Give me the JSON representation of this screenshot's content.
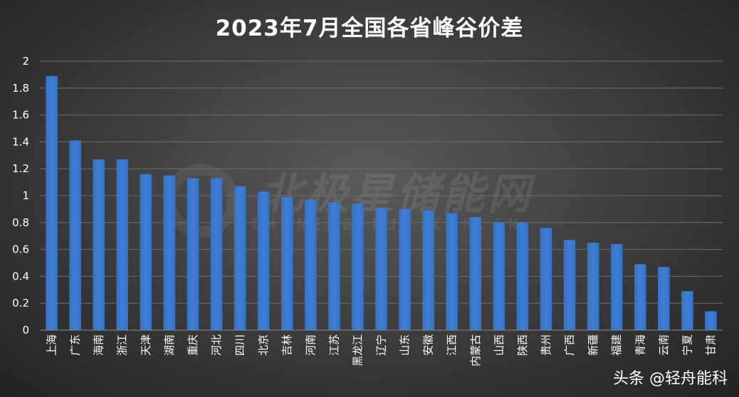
{
  "chart_data": {
    "type": "bar",
    "title": "2023年7月全国各省峰谷价差",
    "xlabel": "",
    "ylabel": "",
    "ylim": [
      0,
      2
    ],
    "yticks": [
      0,
      0.2,
      0.4,
      0.6,
      0.8,
      1,
      1.2,
      1.4,
      1.6,
      1.8,
      2
    ],
    "yticks_labels": [
      "0",
      "0.2",
      "0.4",
      "0.6",
      "0.8",
      "1",
      "1.2",
      "1.4",
      "1.6",
      "1.8",
      "2"
    ],
    "grid": true,
    "legend": "none",
    "bar_color": "#3f7fd6",
    "categories": [
      "上海",
      "广东",
      "海南",
      "浙江",
      "天津",
      "湖南",
      "重庆",
      "河北",
      "四川",
      "北京",
      "吉林",
      "河南",
      "江苏",
      "黑龙江",
      "辽宁",
      "山东",
      "安徽",
      "江西",
      "内蒙古",
      "山西",
      "陕西",
      "贵州",
      "广西",
      "新疆",
      "福建",
      "青海",
      "云南",
      "宁夏",
      "甘肃"
    ],
    "values": [
      1.89,
      1.41,
      1.27,
      1.27,
      1.16,
      1.15,
      1.13,
      1.13,
      1.07,
      1.03,
      0.99,
      0.97,
      0.95,
      0.94,
      0.91,
      0.9,
      0.89,
      0.87,
      0.84,
      0.8,
      0.8,
      0.76,
      0.67,
      0.65,
      0.64,
      0.49,
      0.47,
      0.29,
      0.14
    ]
  },
  "watermark": {
    "main": "北极星储能网",
    "sub": "CHUNENG.BJX.COM.CN"
  },
  "credit": "头条 @轻舟能科",
  "colors": {
    "background": "#3a3a3a",
    "gridline": "#6e6e6e",
    "axis_text": "#ffffff"
  }
}
